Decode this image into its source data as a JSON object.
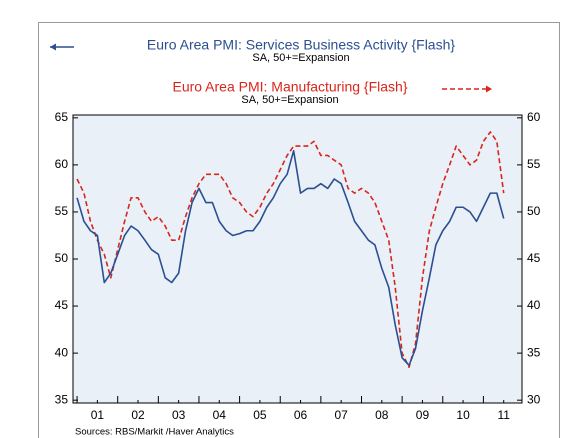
{
  "chart_data": {
    "type": "line",
    "source": "Sources:  RBS/Markit /Haver Analytics",
    "x": [
      2001,
      2001.17,
      2001.33,
      2001.5,
      2001.67,
      2001.83,
      2002,
      2002.17,
      2002.33,
      2002.5,
      2002.67,
      2002.83,
      2003,
      2003.17,
      2003.33,
      2003.5,
      2003.67,
      2003.83,
      2004,
      2004.17,
      2004.33,
      2004.5,
      2004.67,
      2004.83,
      2005,
      2005.17,
      2005.33,
      2005.5,
      2005.67,
      2005.83,
      2006,
      2006.17,
      2006.33,
      2006.5,
      2006.67,
      2006.83,
      2007,
      2007.17,
      2007.33,
      2007.5,
      2007.67,
      2007.83,
      2008,
      2008.17,
      2008.33,
      2008.5,
      2008.67,
      2008.83,
      2009,
      2009.17,
      2009.33,
      2009.5,
      2009.67,
      2009.83,
      2010,
      2010.17,
      2010.33,
      2010.5,
      2010.67,
      2010.83,
      2011,
      2011.17,
      2011.33,
      2011.5
    ],
    "series": [
      {
        "name": "Euro Area PMI: Services Business Activity {Flash}",
        "subtitle": "SA, 50+=Expansion",
        "color": "#2b4f91",
        "dashed": false,
        "axis": "y",
        "values": [
          56.5,
          54,
          53,
          52.5,
          47.5,
          48.5,
          50.5,
          52.5,
          53.5,
          53,
          52,
          51,
          50.5,
          48,
          47.5,
          48.5,
          53,
          56,
          57.5,
          56,
          56,
          54,
          53,
          52.5,
          52.7,
          53,
          53,
          54,
          55.5,
          56.5,
          58,
          59,
          61.5,
          57,
          57.5,
          57.5,
          58,
          57.5,
          58.5,
          58,
          56,
          54,
          53,
          52,
          51.5,
          49,
          47,
          43,
          39.5,
          38.7,
          40.5,
          44.5,
          48,
          51.5,
          53,
          54,
          55.5,
          55.5,
          55,
          54,
          55.5,
          57,
          57,
          54.3
        ]
      },
      {
        "name": "Euro Area PMI: Manufacturing {Flash}",
        "subtitle": "SA, 50+=Expansion",
        "color": "#d9261c",
        "dashed": true,
        "axis": "y2",
        "values": [
          53.5,
          52,
          49,
          47,
          45.5,
          43,
          46,
          49,
          51.5,
          51.5,
          50,
          49,
          49.5,
          48.5,
          47,
          47,
          49.5,
          51.5,
          53,
          54,
          54,
          54,
          53,
          51.5,
          51,
          50,
          49.5,
          50.5,
          52,
          53,
          54.5,
          56,
          57,
          57,
          57,
          57.5,
          56,
          56,
          55.5,
          55,
          52.5,
          52,
          52.5,
          52,
          51,
          49,
          47,
          42,
          35,
          33.5,
          36,
          43,
          48,
          50.5,
          53,
          55,
          57,
          56,
          55,
          55.5,
          57.5,
          58.5,
          57.5,
          52
        ]
      }
    ],
    "xlim": [
      2000.9,
      2011.95
    ],
    "xticks": [
      {
        "value": 2001.5,
        "label": "01"
      },
      {
        "value": 2002.5,
        "label": "02"
      },
      {
        "value": 2003.5,
        "label": "03"
      },
      {
        "value": 2004.5,
        "label": "04"
      },
      {
        "value": 2005.5,
        "label": "05"
      },
      {
        "value": 2006.5,
        "label": "06"
      },
      {
        "value": 2007.5,
        "label": "07"
      },
      {
        "value": 2008.5,
        "label": "08"
      },
      {
        "value": 2009.5,
        "label": "09"
      },
      {
        "value": 2010.5,
        "label": "10"
      },
      {
        "value": 2011.5,
        "label": "11"
      }
    ],
    "xticks_minor": [
      2001,
      2002,
      2003,
      2004,
      2005,
      2006,
      2007,
      2008,
      2009,
      2010,
      2011
    ],
    "ylim": [
      34.7,
      65.3
    ],
    "yticks": [
      35,
      40,
      45,
      50,
      55,
      60,
      65
    ],
    "y2lim": [
      29.7,
      60.3
    ],
    "y2ticks": [
      30,
      35,
      40,
      45,
      50,
      55,
      60
    ]
  }
}
